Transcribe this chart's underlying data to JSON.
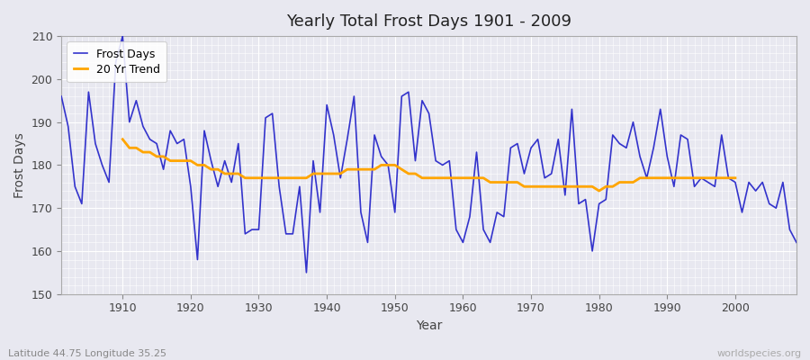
{
  "title": "Yearly Total Frost Days 1901 - 2009",
  "xlabel": "Year",
  "ylabel": "Frost Days",
  "bottom_left_label": "Latitude 44.75 Longitude 35.25",
  "bottom_right_label": "worldspecies.org",
  "ylim": [
    150,
    210
  ],
  "xlim": [
    1901,
    2009
  ],
  "line_color": "#3333cc",
  "trend_color": "#ffa500",
  "bg_color": "#e8e8f0",
  "grid_color": "#d0d0dc",
  "fig_bg_color": "#e8e8f0",
  "years": [
    1901,
    1902,
    1903,
    1904,
    1905,
    1906,
    1907,
    1908,
    1909,
    1910,
    1911,
    1912,
    1913,
    1914,
    1915,
    1916,
    1917,
    1918,
    1919,
    1920,
    1921,
    1922,
    1923,
    1924,
    1925,
    1926,
    1927,
    1928,
    1929,
    1930,
    1931,
    1932,
    1933,
    1934,
    1935,
    1936,
    1937,
    1938,
    1939,
    1940,
    1941,
    1942,
    1943,
    1944,
    1945,
    1946,
    1947,
    1948,
    1949,
    1950,
    1951,
    1952,
    1953,
    1954,
    1955,
    1956,
    1957,
    1958,
    1959,
    1960,
    1961,
    1962,
    1963,
    1964,
    1965,
    1966,
    1967,
    1968,
    1969,
    1970,
    1971,
    1972,
    1973,
    1974,
    1975,
    1976,
    1977,
    1978,
    1979,
    1980,
    1981,
    1982,
    1983,
    1984,
    1985,
    1986,
    1987,
    1988,
    1989,
    1990,
    1991,
    1992,
    1993,
    1994,
    1995,
    1996,
    1997,
    1998,
    1999,
    2000,
    2001,
    2002,
    2003,
    2004,
    2005,
    2006,
    2007,
    2008,
    2009
  ],
  "frost_days": [
    196,
    189,
    175,
    171,
    197,
    185,
    180,
    176,
    204,
    210,
    190,
    195,
    189,
    186,
    185,
    179,
    188,
    185,
    186,
    175,
    158,
    188,
    181,
    175,
    181,
    176,
    185,
    164,
    165,
    165,
    191,
    192,
    175,
    164,
    164,
    175,
    155,
    181,
    169,
    194,
    187,
    177,
    186,
    196,
    169,
    162,
    187,
    182,
    180,
    169,
    196,
    197,
    181,
    195,
    192,
    181,
    180,
    181,
    165,
    162,
    168,
    183,
    165,
    162,
    169,
    168,
    184,
    185,
    178,
    184,
    186,
    177,
    178,
    186,
    173,
    193,
    171,
    172,
    160,
    171,
    172,
    187,
    185,
    184,
    190,
    182,
    177,
    184,
    193,
    182,
    175,
    187,
    186,
    175,
    177,
    176,
    175,
    187,
    177,
    176,
    169,
    176,
    174,
    176,
    171,
    170,
    176,
    165,
    162
  ],
  "trend_years": [
    1910,
    1911,
    1912,
    1913,
    1914,
    1915,
    1916,
    1917,
    1918,
    1919,
    1920,
    1921,
    1922,
    1923,
    1924,
    1925,
    1926,
    1927,
    1928,
    1929,
    1930,
    1931,
    1932,
    1933,
    1934,
    1935,
    1936,
    1937,
    1938,
    1939,
    1940,
    1941,
    1942,
    1943,
    1944,
    1945,
    1946,
    1947,
    1948,
    1949,
    1950,
    1951,
    1952,
    1953,
    1954,
    1955,
    1956,
    1957,
    1958,
    1959,
    1960,
    1961,
    1962,
    1963,
    1964,
    1965,
    1966,
    1967,
    1968,
    1969,
    1970,
    1971,
    1972,
    1973,
    1974,
    1975,
    1976,
    1977,
    1978,
    1979,
    1980,
    1981,
    1982,
    1983,
    1984,
    1985,
    1986,
    1987,
    1988,
    1989,
    1990,
    1991,
    1992,
    1993,
    1994,
    1995,
    1996,
    1997,
    1998,
    1999,
    2000
  ],
  "trend_values": [
    186,
    184,
    184,
    183,
    183,
    182,
    182,
    181,
    181,
    181,
    181,
    180,
    180,
    179,
    179,
    178,
    178,
    178,
    177,
    177,
    177,
    177,
    177,
    177,
    177,
    177,
    177,
    177,
    178,
    178,
    178,
    178,
    178,
    179,
    179,
    179,
    179,
    179,
    180,
    180,
    180,
    179,
    178,
    178,
    177,
    177,
    177,
    177,
    177,
    177,
    177,
    177,
    177,
    177,
    176,
    176,
    176,
    176,
    176,
    175,
    175,
    175,
    175,
    175,
    175,
    175,
    175,
    175,
    175,
    175,
    174,
    175,
    175,
    176,
    176,
    176,
    177,
    177,
    177,
    177,
    177,
    177,
    177,
    177,
    177,
    177,
    177,
    177,
    177,
    177,
    177
  ]
}
